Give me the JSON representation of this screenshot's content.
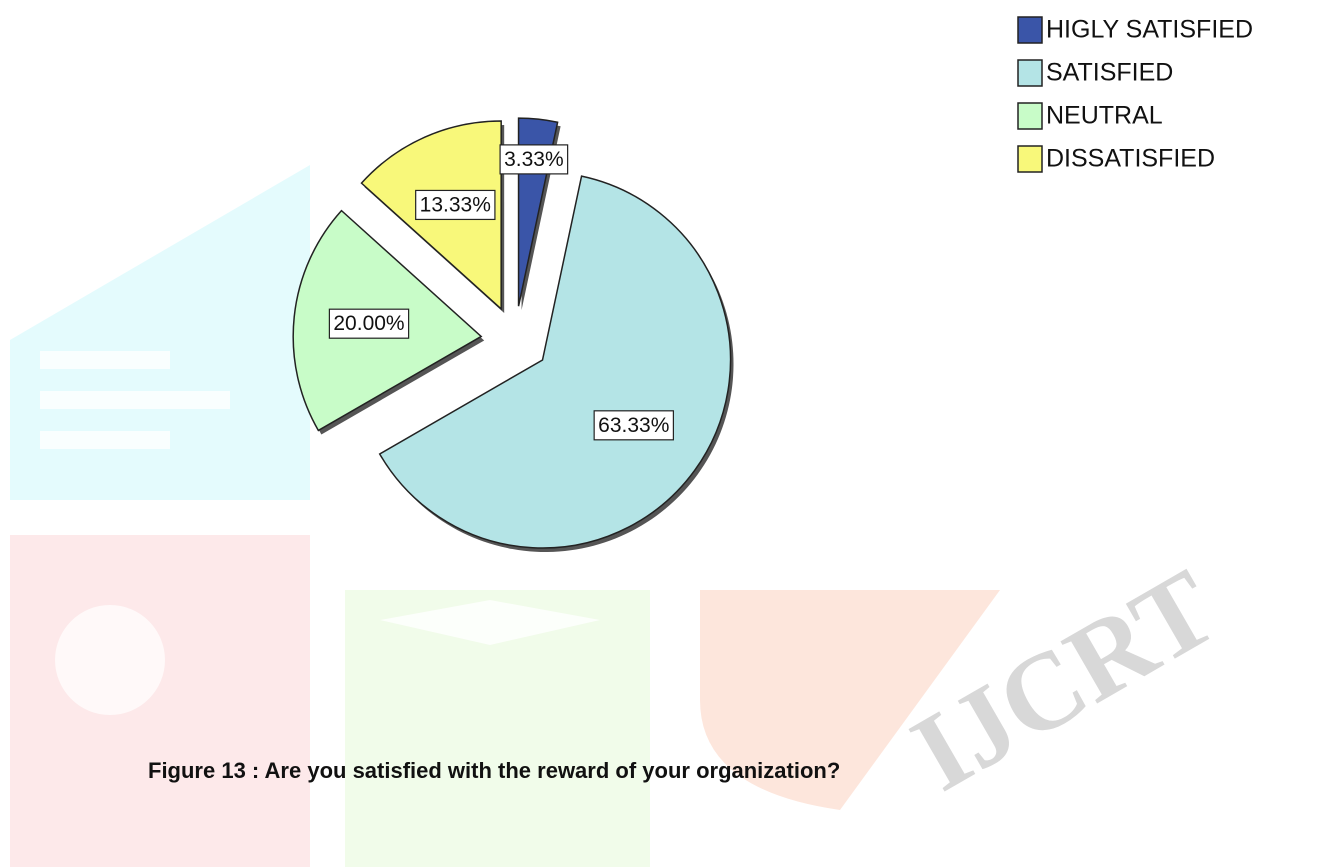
{
  "chart_data": {
    "type": "pie",
    "categories": [
      "HIGLY SATISFIED",
      "SATISFIED",
      "NEUTRAL",
      "DISSATISFIED"
    ],
    "values": [
      3.33,
      63.33,
      20.0,
      13.33
    ],
    "value_labels": [
      "3.33%",
      "63.33%",
      "20.00%",
      "13.33%"
    ],
    "colors": [
      "#3a55a8",
      "#b4e4e6",
      "#c8fcc8",
      "#f8f87a"
    ],
    "legend": "top-right",
    "caption": "Figure 13 : Are you satisfied with the reward of your organization?",
    "watermark": "IJCRT"
  }
}
